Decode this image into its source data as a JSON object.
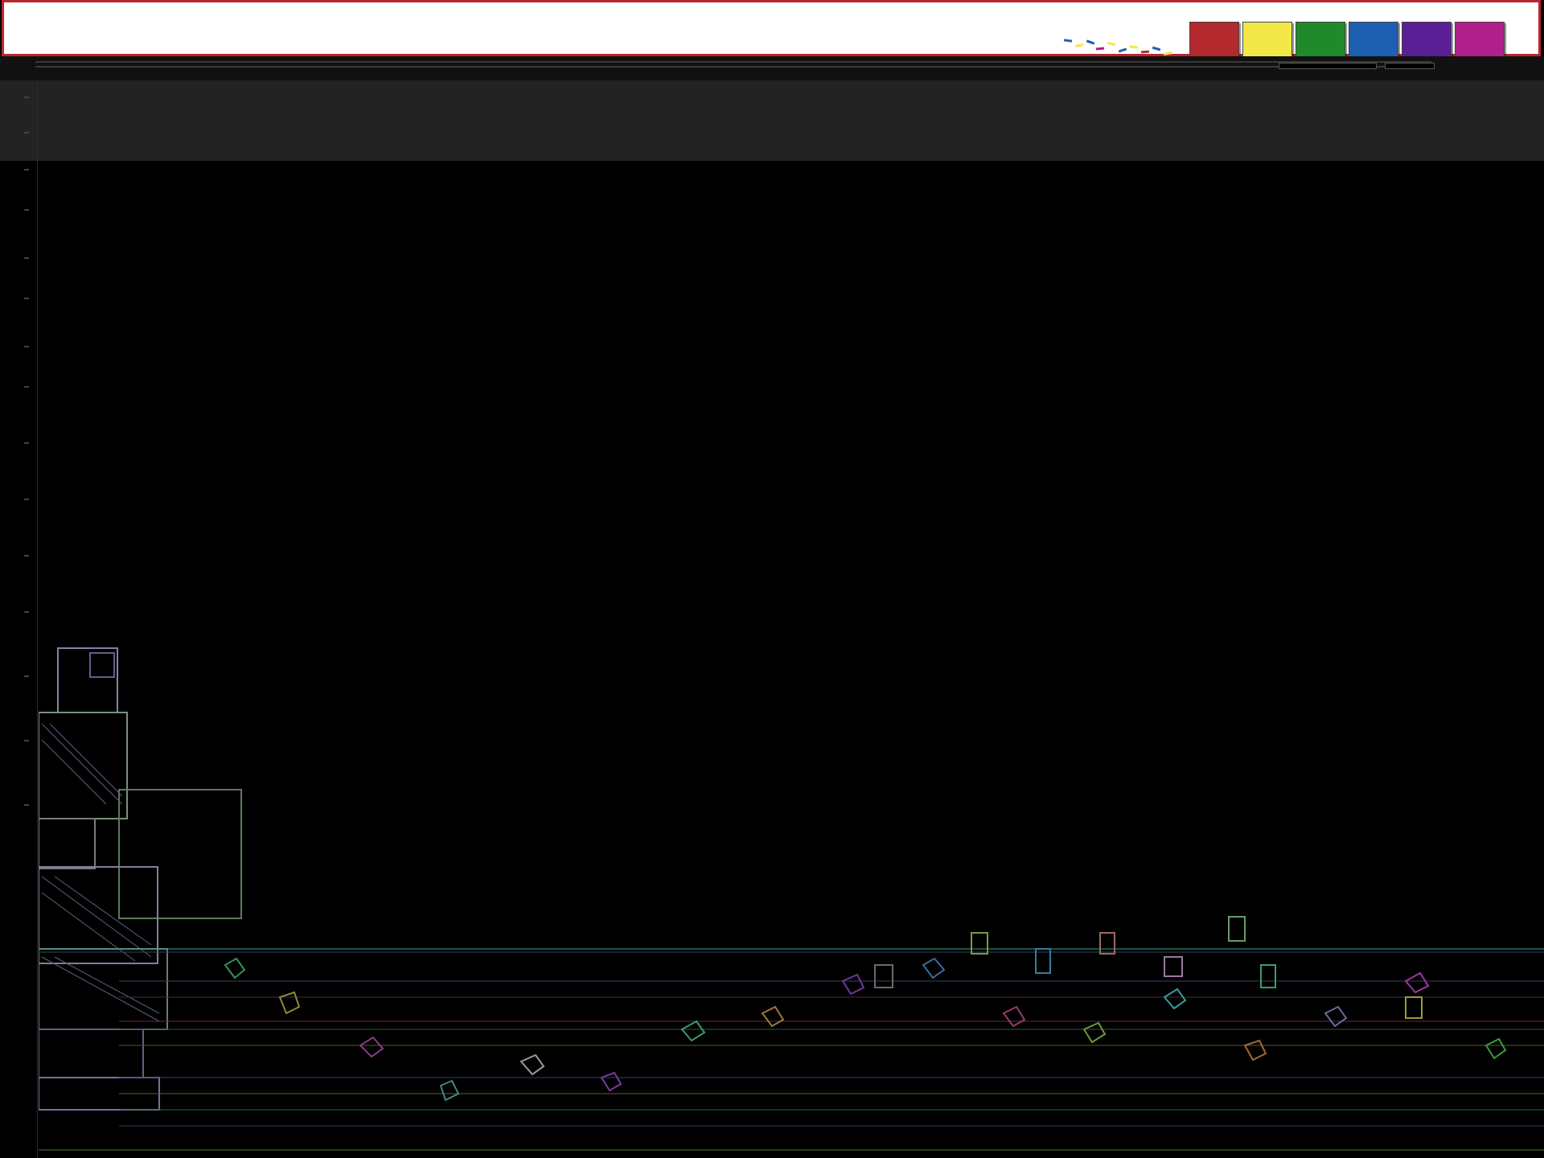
{
  "header": {
    "swatches": [
      {
        "name": "red",
        "color": "#b3292e"
      },
      {
        "name": "yellow",
        "color": "#f2e948"
      },
      {
        "name": "green",
        "color": "#1f8a2a"
      },
      {
        "name": "blue",
        "color": "#1d5fb1"
      },
      {
        "name": "purple",
        "color": "#5a1f96"
      },
      {
        "name": "magenta",
        "color": "#b0208c"
      }
    ],
    "accent": "#b8262d"
  },
  "colors": {
    "background": "#000000",
    "panel": "#232323",
    "toolbar": "#111111"
  }
}
